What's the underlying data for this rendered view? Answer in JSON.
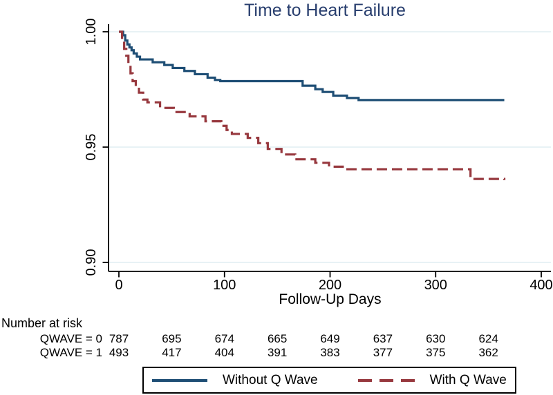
{
  "title": "Time to Heart Failure",
  "colors": {
    "title_navy": "#283e6e",
    "curve_navy": "#1e4e75",
    "curve_maroon": "#97383e",
    "gridline": "#e1edf2",
    "axis": "#000000",
    "legend_border": "#000000"
  },
  "chart_data": {
    "type": "line",
    "subtype": "kaplan-meier-step",
    "title": "Time to Heart Failure",
    "xlabel": "Follow-Up Days",
    "ylabel": "",
    "xlim": [
      0,
      400
    ],
    "ylim": [
      0.9,
      1.0
    ],
    "grid": true,
    "legend_position": "bottom",
    "xticks": [
      {
        "label": "0",
        "value": 0
      },
      {
        "label": "100",
        "value": 100
      },
      {
        "label": "200",
        "value": 200
      },
      {
        "label": "300",
        "value": 300
      },
      {
        "label": "400",
        "value": 400
      }
    ],
    "yticks": [
      {
        "label": "1.00",
        "value": 1.0
      },
      {
        "label": "0.95",
        "value": 0.95
      },
      {
        "label": "0.90",
        "value": 0.9
      }
    ],
    "series": [
      {
        "name": "Without Q Wave",
        "color": "#1e4e75",
        "line_style": "solid",
        "points": [
          [
            0,
            1.0
          ],
          [
            4,
            0.9985
          ],
          [
            6,
            0.9962
          ],
          [
            8,
            0.9945
          ],
          [
            10,
            0.9932
          ],
          [
            12,
            0.992
          ],
          [
            14,
            0.9906
          ],
          [
            17,
            0.9892
          ],
          [
            20,
            0.988
          ],
          [
            32,
            0.9868
          ],
          [
            43,
            0.9856
          ],
          [
            51,
            0.9843
          ],
          [
            62,
            0.983
          ],
          [
            72,
            0.9816
          ],
          [
            84,
            0.9801
          ],
          [
            91,
            0.9791
          ],
          [
            96,
            0.9786
          ],
          [
            174,
            0.9766
          ],
          [
            186,
            0.9751
          ],
          [
            193,
            0.9739
          ],
          [
            203,
            0.9723
          ],
          [
            216,
            0.9713
          ],
          [
            227,
            0.9704
          ],
          [
            365,
            0.9704
          ]
        ]
      },
      {
        "name": "With Q Wave",
        "color": "#97383e",
        "line_style": "dashed",
        "points": [
          [
            0,
            1.0
          ],
          [
            3,
            0.996
          ],
          [
            5,
            0.9926
          ],
          [
            7,
            0.9896
          ],
          [
            9,
            0.9862
          ],
          [
            11,
            0.982
          ],
          [
            13,
            0.9786
          ],
          [
            16,
            0.976
          ],
          [
            19,
            0.9736
          ],
          [
            23,
            0.9706
          ],
          [
            27,
            0.9694
          ],
          [
            39,
            0.967
          ],
          [
            52,
            0.9652
          ],
          [
            67,
            0.9633
          ],
          [
            82,
            0.9612
          ],
          [
            97,
            0.9592
          ],
          [
            102,
            0.9574
          ],
          [
            107,
            0.9557
          ],
          [
            122,
            0.954
          ],
          [
            132,
            0.9517
          ],
          [
            141,
            0.9492
          ],
          [
            154,
            0.9468
          ],
          [
            167,
            0.9447
          ],
          [
            186,
            0.9432
          ],
          [
            199,
            0.9415
          ],
          [
            212,
            0.9404
          ],
          [
            329,
            0.9404
          ],
          [
            333,
            0.9362
          ],
          [
            365,
            0.9357
          ]
        ]
      }
    ]
  },
  "risk_table": {
    "header": "Number at risk",
    "columns_days": [
      0,
      50,
      100,
      150,
      200,
      250,
      300,
      350
    ],
    "rows": [
      {
        "label": "QWAVE = 0",
        "values": [
          "787",
          "695",
          "674",
          "665",
          "649",
          "637",
          "630",
          "624"
        ]
      },
      {
        "label": "QWAVE = 1",
        "values": [
          "493",
          "417",
          "404",
          "391",
          "383",
          "377",
          "375",
          "362"
        ]
      }
    ]
  },
  "legend": {
    "items": [
      {
        "label": "Without Q Wave",
        "style": "solid",
        "color": "#1e4e75"
      },
      {
        "label": "With Q Wave",
        "style": "dashed",
        "color": "#97383e"
      }
    ]
  }
}
